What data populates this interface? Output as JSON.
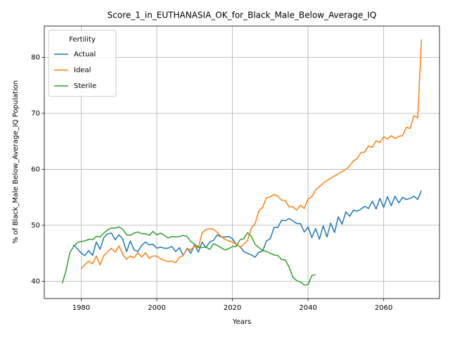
{
  "chart_data": {
    "type": "line",
    "title": "Score_1_in_EUTHANASIA_OK_for_Black_Male_Below_Average_IQ",
    "xlabel": "Years",
    "ylabel": "% of Black_Male Below_Average_IQ Population",
    "legend_title": "Fertility",
    "legend_loc": "upper left",
    "grid": true,
    "xlim": [
      1970.25,
      2074.75
    ],
    "ylim": [
      36.9,
      85.6
    ],
    "xticks": [
      1980,
      2000,
      2020,
      2040,
      2060
    ],
    "yticks": [
      40,
      50,
      60,
      70,
      80
    ],
    "x": [
      1975,
      1976,
      1977,
      1978,
      1979,
      1980,
      1981,
      1982,
      1983,
      1984,
      1985,
      1986,
      1987,
      1988,
      1989,
      1990,
      1991,
      1992,
      1993,
      1994,
      1995,
      1996,
      1997,
      1998,
      1999,
      2000,
      2001,
      2002,
      2003,
      2004,
      2005,
      2006,
      2007,
      2008,
      2009,
      2010,
      2011,
      2012,
      2013,
      2014,
      2015,
      2016,
      2017,
      2018,
      2019,
      2020,
      2021,
      2022,
      2023,
      2024,
      2025,
      2026,
      2027,
      2028,
      2029,
      2030,
      2031,
      2032,
      2033,
      2034,
      2035,
      2036,
      2037,
      2038,
      2039,
      2040,
      2041,
      2042,
      2043,
      2044,
      2045,
      2046,
      2047,
      2048,
      2049,
      2050,
      2051,
      2052,
      2053,
      2054,
      2055,
      2056,
      2057,
      2058,
      2059,
      2060,
      2061,
      2062,
      2063,
      2064,
      2065,
      2066,
      2067,
      2068,
      2069,
      2070
    ],
    "series": [
      {
        "name": "Actual",
        "color": "#1f77b4",
        "values": [
          null,
          null,
          null,
          46.5,
          45.8,
          45.0,
          44.6,
          45.5,
          44.6,
          47.0,
          45.7,
          47.8,
          48.5,
          48.6,
          47.4,
          48.3,
          47.5,
          45.3,
          47.2,
          45.6,
          45.3,
          46.4,
          47.0,
          46.5,
          46.6,
          45.9,
          46.1,
          45.9,
          45.9,
          46.2,
          45.3,
          46.0,
          44.6,
          45.9,
          45.0,
          46.5,
          45.2,
          47.0,
          46.0,
          47.0,
          47.3,
          48.3,
          47.9,
          47.9,
          48.0,
          47.6,
          46.6,
          46.2,
          45.3,
          45.0,
          44.7,
          44.3,
          45.2,
          45.4,
          47.2,
          47.6,
          49.6,
          49.6,
          50.9,
          50.8,
          51.2,
          50.8,
          50.3,
          50.3,
          48.8,
          49.7,
          47.8,
          49.4,
          47.5,
          49.9,
          47.9,
          50.4,
          48.7,
          51.5,
          50.2,
          52.4,
          51.6,
          52.7,
          52.5,
          52.9,
          53.4,
          53.0,
          54.3,
          52.9,
          54.8,
          53.2,
          55.1,
          53.5,
          55.2,
          54.0,
          55.0,
          54.6,
          54.8,
          55.2,
          54.6,
          56.2
        ]
      },
      {
        "name": "Ideal",
        "color": "#ff7f0e",
        "values": [
          null,
          null,
          null,
          null,
          null,
          42.2,
          43.0,
          43.6,
          43.1,
          44.5,
          42.9,
          44.6,
          45.3,
          45.9,
          45.2,
          46.3,
          44.8,
          43.9,
          44.5,
          44.2,
          45.1,
          44.3,
          45.1,
          44.1,
          44.5,
          44.5,
          44.0,
          43.7,
          43.5,
          43.6,
          43.3,
          44.3,
          44.6,
          45.8,
          45.6,
          46.3,
          46.0,
          48.7,
          49.2,
          49.4,
          49.3,
          48.7,
          48.0,
          47.5,
          47.2,
          47.0,
          46.6,
          46.1,
          46.6,
          47.3,
          49.5,
          50.3,
          52.6,
          53.2,
          54.9,
          55.1,
          55.5,
          55.2,
          54.5,
          54.4,
          53.3,
          53.3,
          52.7,
          53.6,
          53.0,
          54.7,
          55.1,
          56.3,
          56.9,
          57.5,
          58.0,
          58.4,
          58.8,
          59.2,
          59.6,
          60.0,
          60.6,
          61.5,
          61.9,
          63.0,
          63.1,
          64.2,
          63.9,
          65.1,
          64.8,
          65.8,
          65.4,
          66.0,
          65.5,
          65.9,
          66.0,
          67.5,
          67.3,
          69.6,
          69.2,
          83.2
        ]
      },
      {
        "name": "Sterile",
        "color": "#2ca02c",
        "values": [
          39.6,
          41.9,
          45.1,
          46.2,
          46.9,
          47.1,
          47.2,
          47.5,
          47.4,
          48.0,
          47.9,
          48.6,
          49.2,
          49.5,
          49.5,
          49.7,
          49.3,
          48.3,
          48.2,
          48.6,
          48.8,
          48.5,
          48.5,
          48.2,
          48.9,
          48.3,
          48.6,
          48.2,
          47.7,
          48.0,
          47.9,
          48.0,
          48.2,
          48.0,
          47.1,
          46.6,
          46.1,
          46.0,
          46.1,
          45.7,
          46.7,
          46.4,
          46.0,
          45.6,
          45.8,
          46.2,
          46.2,
          47.4,
          47.6,
          48.7,
          48.0,
          46.6,
          46.0,
          45.5,
          45.3,
          45.0,
          44.7,
          44.6,
          43.9,
          43.8,
          42.5,
          40.7,
          40.1,
          39.9,
          39.3,
          39.4,
          41.0,
          41.2,
          null,
          null,
          null,
          null,
          null,
          null,
          null,
          null,
          null,
          null,
          null,
          null,
          null,
          null,
          null,
          null,
          null,
          null,
          null,
          null,
          null,
          null,
          null,
          null,
          null,
          null,
          null,
          null
        ]
      }
    ]
  }
}
